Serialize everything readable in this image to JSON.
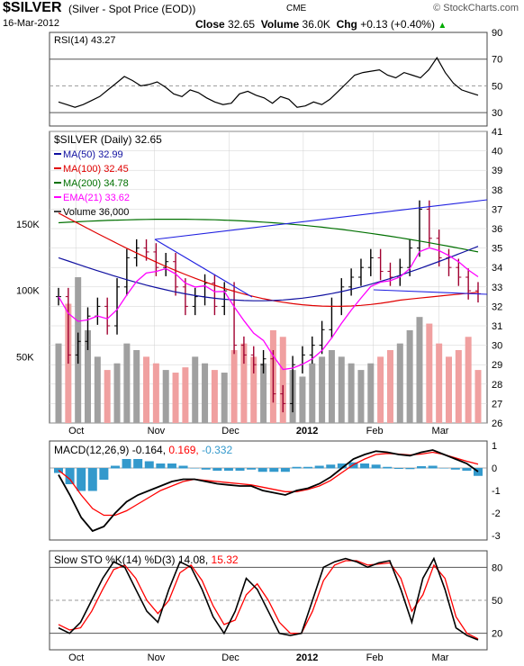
{
  "header": {
    "symbol": "$SILVER",
    "description": "(Silver - Spot Price (EOD))",
    "exchange": "CME",
    "brand": "© StockCharts.com",
    "date": "16-Mar-2012",
    "close_label": "Close",
    "close_value": "32.65",
    "volume_label": "Volume",
    "volume_value": "36.0K",
    "chg_label": "Chg",
    "chg_value": "+0.13 (+0.40%)",
    "chg_arrow": "▲"
  },
  "colors": {
    "price": "#000000",
    "ma50": "#1010a0",
    "ma100": "#e00000",
    "ma200": "#007000",
    "ema21": "#ff00ff",
    "volume_up": "#a0a0a0",
    "volume_down": "#f0a0a0",
    "trendline": "#2020e0",
    "macd_hist": "#3399cc",
    "signal": "#ff0000",
    "grid": "#d0d0d0"
  },
  "chart_data": [
    {
      "type": "line",
      "panel": "rsi",
      "legend": "RSI(14) 43.27",
      "ylim": [
        20,
        90
      ],
      "yticks": [
        30,
        50,
        70,
        90
      ],
      "reference_lines": [
        30,
        50,
        70
      ],
      "series": [
        {
          "name": "RSI(14)",
          "values": [
            38,
            36,
            34,
            36,
            39,
            42,
            47,
            52,
            57,
            54,
            50,
            51,
            53,
            49,
            44,
            42,
            47,
            45,
            41,
            38,
            36,
            37,
            44,
            46,
            43,
            41,
            37,
            42,
            40,
            34,
            35,
            38,
            36,
            40,
            46,
            52,
            58,
            60,
            61,
            62,
            58,
            56,
            60,
            58,
            56,
            62,
            71,
            60,
            52,
            47,
            45,
            43
          ]
        }
      ]
    },
    {
      "type": "ohlc",
      "panel": "price",
      "legend_title": "$SILVER (Daily) 32.65",
      "ylim": [
        26,
        41
      ],
      "yticks": [
        26,
        27,
        28,
        29,
        30,
        31,
        32,
        33,
        34,
        35,
        36,
        37,
        38,
        39,
        40,
        41
      ],
      "x_labels": [
        "Oct",
        "Nov",
        "Dec",
        "2012",
        "Feb",
        "Mar"
      ],
      "close": [
        32.5,
        29.5,
        30.2,
        31.5,
        32.0,
        31.0,
        33.0,
        34.5,
        35.0,
        34.8,
        34.0,
        34.3,
        33.0,
        32.0,
        32.5,
        33.2,
        32.0,
        32.8,
        30.0,
        29.5,
        29.0,
        29.3,
        27.5,
        27.0,
        29.0,
        29.5,
        30.0,
        30.8,
        32.0,
        33.0,
        33.5,
        34.0,
        34.5,
        33.8,
        33.5,
        34.0,
        35.0,
        37.0,
        35.5,
        34.5,
        34.0,
        33.5,
        32.8,
        32.65
      ],
      "ma_legend": [
        {
          "name": "MA(50)",
          "value": "32.99"
        },
        {
          "name": "MA(100)",
          "value": "32.45"
        },
        {
          "name": "MA(200)",
          "value": "34.78"
        },
        {
          "name": "EMA(21)",
          "value": "33.62"
        },
        {
          "name": "Volume",
          "value": "36,000"
        }
      ],
      "volume_ticks": [
        "150K",
        "100K",
        "50K"
      ],
      "volume_ylim": [
        0,
        220
      ],
      "volume": [
        60,
        90,
        110,
        70,
        50,
        40,
        45,
        60,
        55,
        50,
        45,
        40,
        38,
        42,
        50,
        45,
        40,
        38,
        55,
        60,
        50,
        45,
        70,
        65,
        40,
        35,
        45,
        50,
        55,
        50,
        45,
        40,
        45,
        50,
        55,
        60,
        70,
        80,
        75,
        60,
        50,
        55,
        65,
        40
      ]
    },
    {
      "type": "line",
      "panel": "macd",
      "legend_name": "MACD(12,26,9)",
      "legend_values": [
        "-0.164",
        "0.169",
        "-0.332"
      ],
      "ylim": [
        -3.2,
        1.2
      ],
      "yticks": [
        1,
        0,
        -1,
        -2,
        -3
      ],
      "series": [
        {
          "name": "MACD",
          "values": [
            -0.3,
            -1.2,
            -2.2,
            -2.8,
            -2.6,
            -2.0,
            -1.5,
            -1.2,
            -1.0,
            -0.8,
            -0.6,
            -0.5,
            -0.5,
            -0.6,
            -0.7,
            -0.75,
            -0.8,
            -0.8,
            -1.0,
            -1.1,
            -1.2,
            -1.0,
            -0.9,
            -0.7,
            -0.4,
            0.0,
            0.4,
            0.6,
            0.75,
            0.7,
            0.6,
            0.55,
            0.7,
            0.8,
            0.6,
            0.4,
            0.2,
            -0.16
          ]
        },
        {
          "name": "Signal",
          "values": [
            -0.1,
            -0.5,
            -1.2,
            -1.8,
            -2.1,
            -2.1,
            -1.9,
            -1.6,
            -1.3,
            -1.0,
            -0.8,
            -0.6,
            -0.5,
            -0.55,
            -0.6,
            -0.65,
            -0.7,
            -0.75,
            -0.85,
            -0.95,
            -1.05,
            -1.05,
            -0.95,
            -0.8,
            -0.55,
            -0.2,
            0.15,
            0.4,
            0.6,
            0.65,
            0.62,
            0.58,
            0.62,
            0.7,
            0.6,
            0.45,
            0.3,
            0.17
          ]
        }
      ]
    },
    {
      "type": "line",
      "panel": "stochastics",
      "legend_name": "Slow STO %K(14) %D(3)",
      "legend_values": [
        "14.08",
        "15.32"
      ],
      "ylim": [
        5,
        95
      ],
      "yticks": [
        80,
        50,
        20
      ],
      "reference_lines": [
        20,
        50,
        80
      ],
      "series": [
        {
          "name": "%K",
          "values": [
            25,
            20,
            30,
            50,
            70,
            85,
            80,
            60,
            40,
            30,
            60,
            85,
            80,
            60,
            35,
            20,
            40,
            70,
            60,
            40,
            20,
            18,
            20,
            50,
            80,
            85,
            88,
            85,
            80,
            84,
            86,
            60,
            30,
            70,
            88,
            60,
            25,
            18,
            14
          ]
        },
        {
          "name": "%D",
          "values": [
            28,
            23,
            25,
            40,
            60,
            78,
            82,
            70,
            50,
            38,
            50,
            75,
            82,
            68,
            45,
            28,
            32,
            55,
            65,
            50,
            30,
            20,
            20,
            40,
            68,
            82,
            86,
            86,
            82,
            83,
            84,
            70,
            40,
            55,
            82,
            70,
            35,
            20,
            15
          ]
        }
      ]
    }
  ]
}
